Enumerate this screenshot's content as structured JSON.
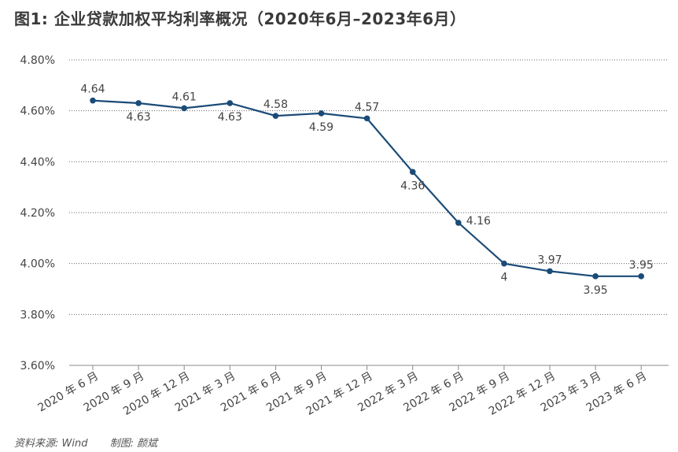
{
  "title": "图1: 企业贷款加权平均利率概况（2020年6月–2023年6月）",
  "source": "资料来源: Wind",
  "author": "制图: 颜斌",
  "colors": {
    "line": "#1b4b77"
  },
  "chart_data": {
    "type": "line",
    "title": "图1: 企业贷款加权平均利率概况（2020年6月–2023年6月）",
    "xlabel": "",
    "ylabel": "",
    "ylim": [
      3.6,
      4.8
    ],
    "yticks": [
      "4.80%",
      "4.60%",
      "4.40%",
      "4.20%",
      "4.00%",
      "3.80%",
      "3.60%"
    ],
    "ytick_values": [
      4.8,
      4.6,
      4.4,
      4.2,
      4.0,
      3.8,
      3.6
    ],
    "grid": true,
    "categories": [
      "2020 年 6 月",
      "2020 年 9 月",
      "2020 年 12 月",
      "2021 年 3 月",
      "2021 年 6 月",
      "2021 年 9 月",
      "2021 年 12 月",
      "2022 年 3 月",
      "2022 年 6 月",
      "2022 年 9 月",
      "2022 年 12 月",
      "2023 年 3 月",
      "2023 年 6 月"
    ],
    "values": [
      4.64,
      4.63,
      4.61,
      4.63,
      4.58,
      4.59,
      4.57,
      4.36,
      4.16,
      4.0,
      3.97,
      3.95,
      3.95
    ],
    "data_labels": [
      "4.64",
      "4.63",
      "4.61",
      "4.63",
      "4.58",
      "4.59",
      "4.57",
      "4.36",
      "4.16",
      "4",
      "3.97",
      "3.95",
      "3.95"
    ],
    "label_positions": [
      "above",
      "below",
      "above",
      "below",
      "above",
      "below",
      "above",
      "below",
      "right",
      "below",
      "above",
      "below",
      "above"
    ]
  }
}
